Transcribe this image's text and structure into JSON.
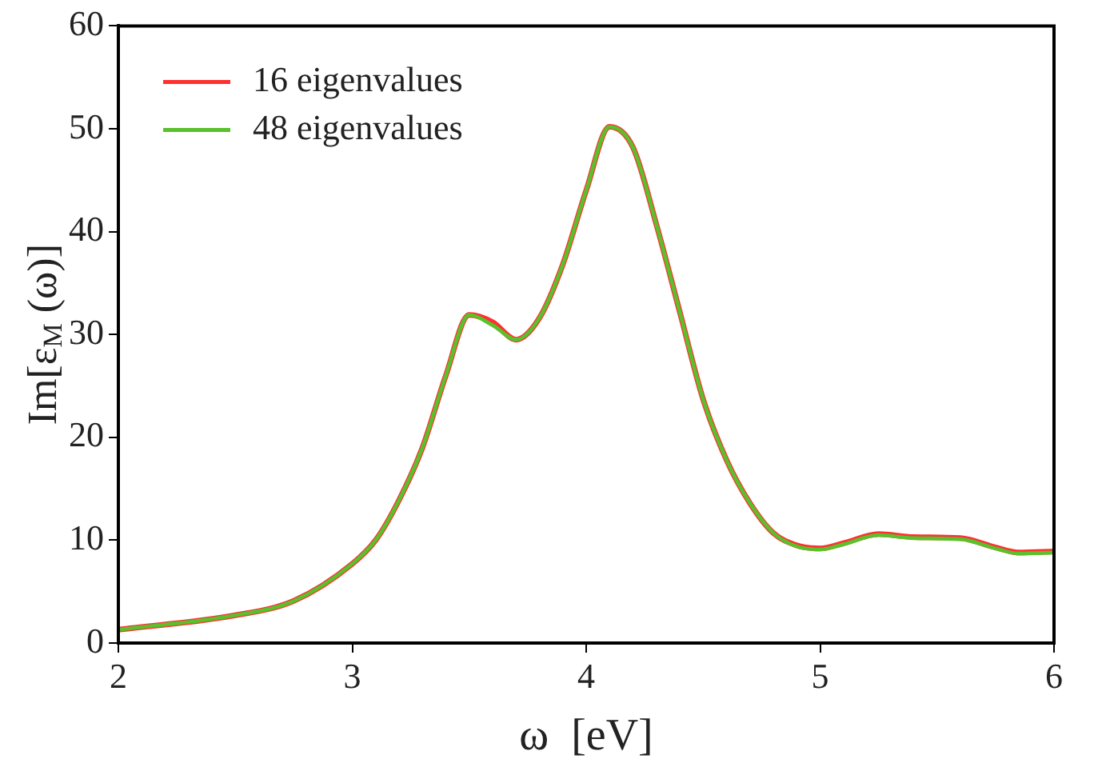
{
  "chart_data": {
    "type": "line",
    "xlabel": "ω  [eV]",
    "ylabel": "Im[ε$_{M}$ (ω)]",
    "x": [
      2,
      2.5,
      2.75,
      3,
      3.1,
      3.2,
      3.3,
      3.4,
      3.5,
      3.6,
      3.7,
      3.8,
      3.9,
      4,
      4.1,
      4.2,
      4.3,
      4.4,
      4.5,
      4.6,
      4.7,
      4.8,
      4.9,
      5,
      5.1,
      5.25,
      5.4,
      5.6,
      5.75,
      5.85,
      6
    ],
    "series": [
      {
        "name": "16 eigenvalues",
        "color": "#ff3030",
        "values": [
          1.3,
          2.7,
          4.1,
          7.7,
          10,
          13.9,
          19,
          26,
          31.9,
          31.2,
          29.5,
          31.6,
          36.8,
          44,
          50.2,
          48.2,
          40.7,
          32.2,
          23.7,
          17.8,
          13.6,
          10.7,
          9.5,
          9.2,
          9.7,
          10.6,
          10.3,
          10.2,
          9.3,
          8.8,
          8.9
        ]
      },
      {
        "name": "48 eigenvalues",
        "color": "#5ac12c",
        "values": [
          1.3,
          2.7,
          4.1,
          7.7,
          10,
          13.9,
          19,
          26,
          31.9,
          30.9,
          29.5,
          31.6,
          36.8,
          44,
          50.2,
          48.2,
          40.7,
          32.2,
          23.7,
          17.8,
          13.6,
          10.7,
          9.4,
          9.1,
          9.6,
          10.5,
          10.2,
          10.1,
          9.2,
          8.7,
          8.8
        ]
      }
    ],
    "xlim": [
      2,
      6
    ],
    "xticks": [
      2,
      3,
      4,
      5,
      6
    ],
    "ylim": [
      0,
      60
    ],
    "yticks": [
      0,
      10,
      20,
      30,
      40,
      50,
      60
    ],
    "grid": false,
    "legend": "top left",
    "marker": "none",
    "line_style": "solid"
  }
}
